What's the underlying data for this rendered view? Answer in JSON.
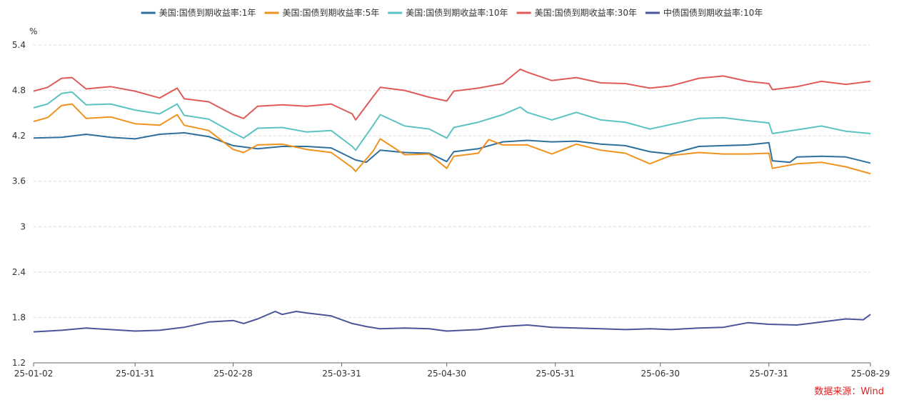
{
  "chart_data": {
    "type": "line",
    "ylabel": "%",
    "ylim": [
      1.2,
      5.4
    ],
    "yticks": [
      "1.2",
      "1.8",
      "2.4",
      "3",
      "3.6",
      "4.2",
      "4.8",
      "5.4"
    ],
    "xlim": [
      "2025-01-02",
      "2025-08-29"
    ],
    "xticks": [
      "25-01-02",
      "25-01-31",
      "25-02-28",
      "25-03-31",
      "25-04-30",
      "25-05-31",
      "25-06-30",
      "25-07-31",
      "25-08-29"
    ],
    "grid": true,
    "legend_position": "top-center",
    "series": [
      {
        "name": "美国:国债到期收益率:1年",
        "color": "#2e6f9e",
        "points": [
          [
            "2025-01-02",
            4.17
          ],
          [
            "2025-01-10",
            4.18
          ],
          [
            "2025-01-17",
            4.22
          ],
          [
            "2025-01-24",
            4.18
          ],
          [
            "2025-01-31",
            4.16
          ],
          [
            "2025-02-07",
            4.22
          ],
          [
            "2025-02-14",
            4.24
          ],
          [
            "2025-02-21",
            4.19
          ],
          [
            "2025-02-28",
            4.07
          ],
          [
            "2025-03-07",
            4.03
          ],
          [
            "2025-03-14",
            4.06
          ],
          [
            "2025-03-21",
            4.06
          ],
          [
            "2025-03-28",
            4.04
          ],
          [
            "2025-04-04",
            3.88
          ],
          [
            "2025-04-07",
            3.85
          ],
          [
            "2025-04-11",
            4.01
          ],
          [
            "2025-04-18",
            3.98
          ],
          [
            "2025-04-25",
            3.97
          ],
          [
            "2025-04-30",
            3.86
          ],
          [
            "2025-05-02",
            3.99
          ],
          [
            "2025-05-09",
            4.03
          ],
          [
            "2025-05-16",
            4.12
          ],
          [
            "2025-05-23",
            4.14
          ],
          [
            "2025-05-30",
            4.12
          ],
          [
            "2025-06-06",
            4.13
          ],
          [
            "2025-06-13",
            4.09
          ],
          [
            "2025-06-20",
            4.07
          ],
          [
            "2025-06-27",
            3.99
          ],
          [
            "2025-07-03",
            3.96
          ],
          [
            "2025-07-11",
            4.06
          ],
          [
            "2025-07-18",
            4.07
          ],
          [
            "2025-07-25",
            4.08
          ],
          [
            "2025-07-31",
            4.11
          ],
          [
            "2025-08-01",
            3.87
          ],
          [
            "2025-08-06",
            3.85
          ],
          [
            "2025-08-08",
            3.92
          ],
          [
            "2025-08-15",
            3.93
          ],
          [
            "2025-08-22",
            3.92
          ],
          [
            "2025-08-29",
            3.84
          ]
        ]
      },
      {
        "name": "美国:国债到期收益率:5年",
        "color": "#f0921e",
        "points": [
          [
            "2025-01-02",
            4.39
          ],
          [
            "2025-01-06",
            4.44
          ],
          [
            "2025-01-10",
            4.6
          ],
          [
            "2025-01-13",
            4.62
          ],
          [
            "2025-01-17",
            4.43
          ],
          [
            "2025-01-24",
            4.45
          ],
          [
            "2025-01-31",
            4.36
          ],
          [
            "2025-02-07",
            4.34
          ],
          [
            "2025-02-12",
            4.48
          ],
          [
            "2025-02-14",
            4.34
          ],
          [
            "2025-02-21",
            4.27
          ],
          [
            "2025-02-28",
            4.02
          ],
          [
            "2025-03-03",
            3.98
          ],
          [
            "2025-03-07",
            4.08
          ],
          [
            "2025-03-14",
            4.09
          ],
          [
            "2025-03-21",
            4.02
          ],
          [
            "2025-03-28",
            3.98
          ],
          [
            "2025-04-03",
            3.78
          ],
          [
            "2025-04-04",
            3.73
          ],
          [
            "2025-04-09",
            4.0
          ],
          [
            "2025-04-11",
            4.16
          ],
          [
            "2025-04-18",
            3.95
          ],
          [
            "2025-04-25",
            3.96
          ],
          [
            "2025-04-30",
            3.77
          ],
          [
            "2025-05-02",
            3.93
          ],
          [
            "2025-05-09",
            3.97
          ],
          [
            "2025-05-12",
            4.15
          ],
          [
            "2025-05-16",
            4.08
          ],
          [
            "2025-05-23",
            4.08
          ],
          [
            "2025-05-30",
            3.96
          ],
          [
            "2025-06-06",
            4.09
          ],
          [
            "2025-06-13",
            4.01
          ],
          [
            "2025-06-20",
            3.97
          ],
          [
            "2025-06-27",
            3.83
          ],
          [
            "2025-07-03",
            3.94
          ],
          [
            "2025-07-11",
            3.98
          ],
          [
            "2025-07-18",
            3.96
          ],
          [
            "2025-07-25",
            3.96
          ],
          [
            "2025-07-31",
            3.97
          ],
          [
            "2025-08-01",
            3.77
          ],
          [
            "2025-08-08",
            3.83
          ],
          [
            "2025-08-15",
            3.85
          ],
          [
            "2025-08-22",
            3.79
          ],
          [
            "2025-08-29",
            3.7
          ]
        ]
      },
      {
        "name": "美国:国债到期收益率:10年",
        "color": "#5bc3c1",
        "points": [
          [
            "2025-01-02",
            4.57
          ],
          [
            "2025-01-06",
            4.62
          ],
          [
            "2025-01-10",
            4.76
          ],
          [
            "2025-01-13",
            4.78
          ],
          [
            "2025-01-17",
            4.61
          ],
          [
            "2025-01-24",
            4.62
          ],
          [
            "2025-01-31",
            4.54
          ],
          [
            "2025-02-07",
            4.49
          ],
          [
            "2025-02-12",
            4.62
          ],
          [
            "2025-02-14",
            4.47
          ],
          [
            "2025-02-21",
            4.42
          ],
          [
            "2025-02-28",
            4.24
          ],
          [
            "2025-03-03",
            4.17
          ],
          [
            "2025-03-07",
            4.3
          ],
          [
            "2025-03-14",
            4.31
          ],
          [
            "2025-03-21",
            4.25
          ],
          [
            "2025-03-28",
            4.27
          ],
          [
            "2025-04-03",
            4.06
          ],
          [
            "2025-04-04",
            4.01
          ],
          [
            "2025-04-09",
            4.34
          ],
          [
            "2025-04-11",
            4.48
          ],
          [
            "2025-04-18",
            4.33
          ],
          [
            "2025-04-25",
            4.29
          ],
          [
            "2025-04-30",
            4.17
          ],
          [
            "2025-05-02",
            4.31
          ],
          [
            "2025-05-09",
            4.38
          ],
          [
            "2025-05-16",
            4.48
          ],
          [
            "2025-05-21",
            4.58
          ],
          [
            "2025-05-23",
            4.51
          ],
          [
            "2025-05-30",
            4.41
          ],
          [
            "2025-06-06",
            4.51
          ],
          [
            "2025-06-13",
            4.41
          ],
          [
            "2025-06-20",
            4.38
          ],
          [
            "2025-06-27",
            4.29
          ],
          [
            "2025-07-03",
            4.35
          ],
          [
            "2025-07-11",
            4.43
          ],
          [
            "2025-07-18",
            4.44
          ],
          [
            "2025-07-25",
            4.4
          ],
          [
            "2025-07-31",
            4.37
          ],
          [
            "2025-08-01",
            4.23
          ],
          [
            "2025-08-08",
            4.28
          ],
          [
            "2025-08-15",
            4.33
          ],
          [
            "2025-08-22",
            4.26
          ],
          [
            "2025-08-29",
            4.23
          ]
        ]
      },
      {
        "name": "美国:国债到期收益率:30年",
        "color": "#e05a5a",
        "points": [
          [
            "2025-01-02",
            4.79
          ],
          [
            "2025-01-06",
            4.84
          ],
          [
            "2025-01-10",
            4.96
          ],
          [
            "2025-01-13",
            4.97
          ],
          [
            "2025-01-17",
            4.82
          ],
          [
            "2025-01-24",
            4.85
          ],
          [
            "2025-01-31",
            4.79
          ],
          [
            "2025-02-07",
            4.7
          ],
          [
            "2025-02-12",
            4.83
          ],
          [
            "2025-02-14",
            4.69
          ],
          [
            "2025-02-21",
            4.65
          ],
          [
            "2025-02-28",
            4.48
          ],
          [
            "2025-03-03",
            4.43
          ],
          [
            "2025-03-07",
            4.59
          ],
          [
            "2025-03-14",
            4.61
          ],
          [
            "2025-03-21",
            4.59
          ],
          [
            "2025-03-28",
            4.62
          ],
          [
            "2025-04-03",
            4.49
          ],
          [
            "2025-04-04",
            4.41
          ],
          [
            "2025-04-09",
            4.72
          ],
          [
            "2025-04-11",
            4.84
          ],
          [
            "2025-04-18",
            4.8
          ],
          [
            "2025-04-25",
            4.71
          ],
          [
            "2025-04-30",
            4.66
          ],
          [
            "2025-05-02",
            4.79
          ],
          [
            "2025-05-09",
            4.83
          ],
          [
            "2025-05-16",
            4.89
          ],
          [
            "2025-05-21",
            5.08
          ],
          [
            "2025-05-23",
            5.04
          ],
          [
            "2025-05-30",
            4.93
          ],
          [
            "2025-06-06",
            4.97
          ],
          [
            "2025-06-13",
            4.9
          ],
          [
            "2025-06-20",
            4.89
          ],
          [
            "2025-06-27",
            4.83
          ],
          [
            "2025-07-03",
            4.86
          ],
          [
            "2025-07-11",
            4.96
          ],
          [
            "2025-07-18",
            4.99
          ],
          [
            "2025-07-25",
            4.92
          ],
          [
            "2025-07-31",
            4.89
          ],
          [
            "2025-08-01",
            4.81
          ],
          [
            "2025-08-08",
            4.85
          ],
          [
            "2025-08-15",
            4.92
          ],
          [
            "2025-08-22",
            4.88
          ],
          [
            "2025-08-29",
            4.92
          ]
        ]
      },
      {
        "name": "中债国债到期收益率:10年",
        "color": "#4a5599",
        "points": [
          [
            "2025-01-02",
            1.61
          ],
          [
            "2025-01-10",
            1.63
          ],
          [
            "2025-01-17",
            1.66
          ],
          [
            "2025-01-24",
            1.64
          ],
          [
            "2025-01-31",
            1.62
          ],
          [
            "2025-02-07",
            1.63
          ],
          [
            "2025-02-14",
            1.67
          ],
          [
            "2025-02-21",
            1.74
          ],
          [
            "2025-02-28",
            1.76
          ],
          [
            "2025-03-03",
            1.72
          ],
          [
            "2025-03-07",
            1.78
          ],
          [
            "2025-03-12",
            1.88
          ],
          [
            "2025-03-14",
            1.84
          ],
          [
            "2025-03-18",
            1.88
          ],
          [
            "2025-03-21",
            1.86
          ],
          [
            "2025-03-28",
            1.82
          ],
          [
            "2025-04-03",
            1.72
          ],
          [
            "2025-04-07",
            1.68
          ],
          [
            "2025-04-11",
            1.65
          ],
          [
            "2025-04-18",
            1.66
          ],
          [
            "2025-04-25",
            1.65
          ],
          [
            "2025-04-30",
            1.62
          ],
          [
            "2025-05-09",
            1.64
          ],
          [
            "2025-05-16",
            1.68
          ],
          [
            "2025-05-23",
            1.7
          ],
          [
            "2025-05-30",
            1.67
          ],
          [
            "2025-06-06",
            1.66
          ],
          [
            "2025-06-13",
            1.65
          ],
          [
            "2025-06-20",
            1.64
          ],
          [
            "2025-06-27",
            1.65
          ],
          [
            "2025-07-03",
            1.64
          ],
          [
            "2025-07-11",
            1.66
          ],
          [
            "2025-07-18",
            1.67
          ],
          [
            "2025-07-25",
            1.73
          ],
          [
            "2025-07-31",
            1.71
          ],
          [
            "2025-08-08",
            1.7
          ],
          [
            "2025-08-15",
            1.74
          ],
          [
            "2025-08-22",
            1.78
          ],
          [
            "2025-08-27",
            1.77
          ],
          [
            "2025-08-29",
            1.84
          ]
        ]
      }
    ]
  },
  "source_label": "数据来源：Wind"
}
